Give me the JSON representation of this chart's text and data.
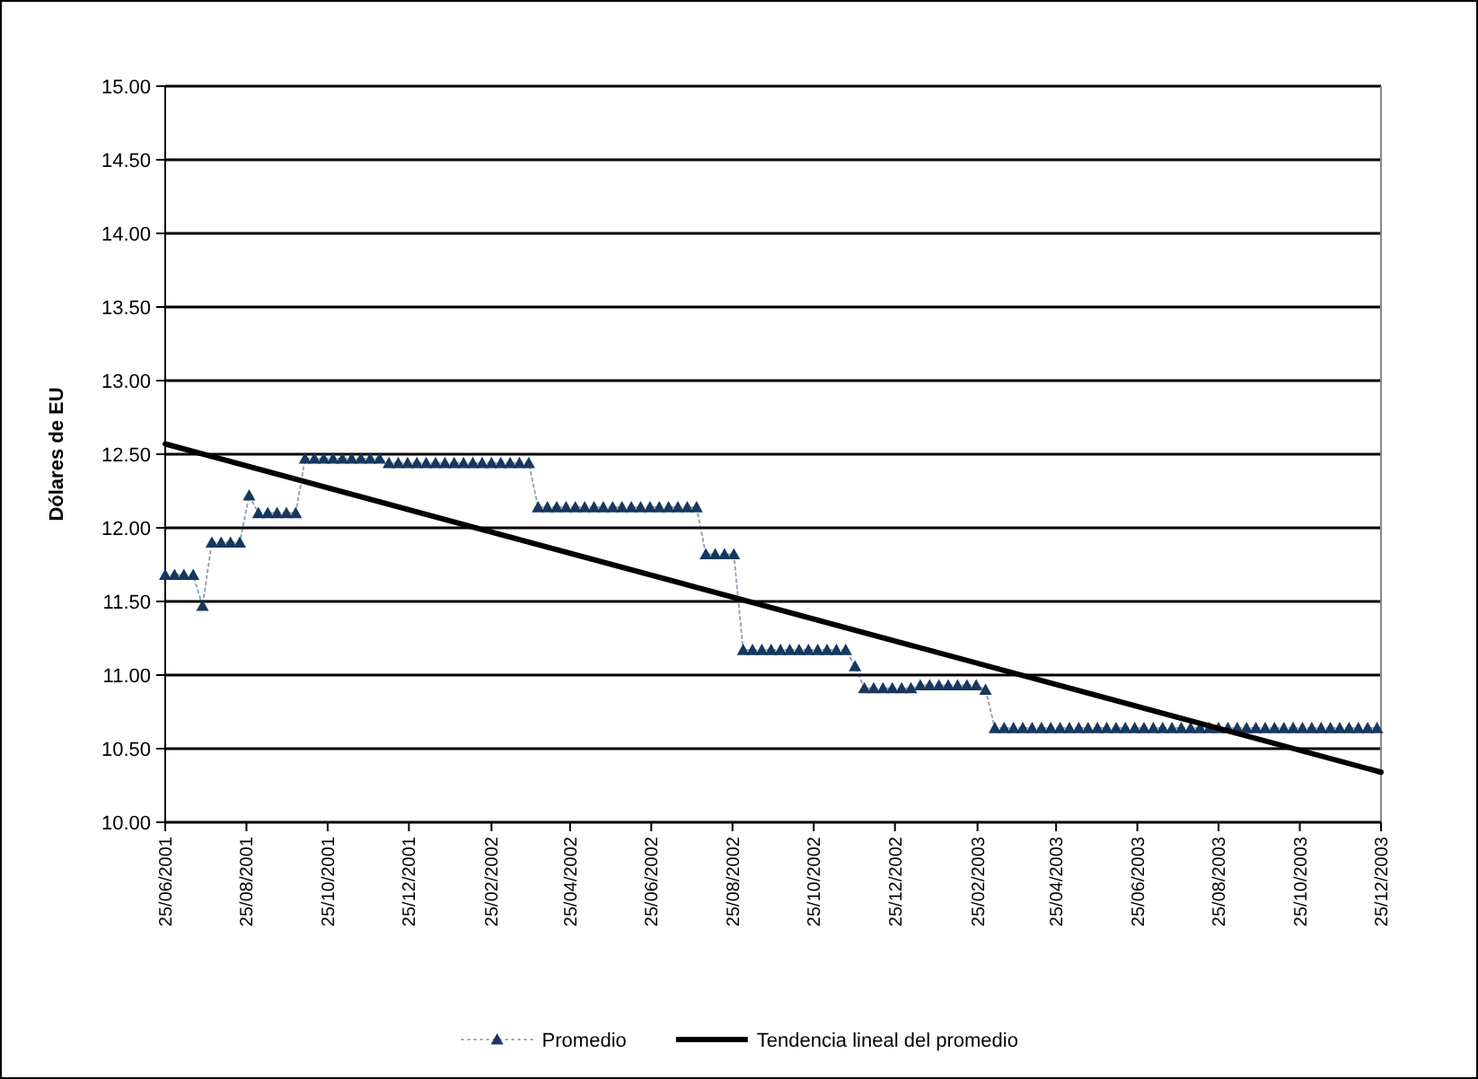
{
  "chart_data": {
    "type": "line",
    "ylabel": "Dólares de EU",
    "ylim": [
      10,
      15
    ],
    "yticks": [
      {
        "value": 10,
        "label": "10.00"
      },
      {
        "value": 10.5,
        "label": "10.50"
      },
      {
        "value": 11,
        "label": "11.00"
      },
      {
        "value": 11.5,
        "label": "11.50"
      },
      {
        "value": 12,
        "label": "12.00"
      },
      {
        "value": 12.5,
        "label": "12.50"
      },
      {
        "value": 13,
        "label": "13.00"
      },
      {
        "value": 13.5,
        "label": "13.50"
      },
      {
        "value": 14,
        "label": "14.00"
      },
      {
        "value": 14.5,
        "label": "14.50"
      },
      {
        "value": 15,
        "label": "15.00"
      }
    ],
    "xlim": [
      "2001-06-25",
      "2003-12-25"
    ],
    "xticks": [
      {
        "value": "2001-06-25",
        "label": "25/06/2001"
      },
      {
        "value": "2001-08-25",
        "label": "25/08/2001"
      },
      {
        "value": "2001-10-25",
        "label": "25/10/2001"
      },
      {
        "value": "2001-12-25",
        "label": "25/12/2001"
      },
      {
        "value": "2002-02-25",
        "label": "25/02/2002"
      },
      {
        "value": "2002-04-25",
        "label": "25/04/2002"
      },
      {
        "value": "2002-06-25",
        "label": "25/06/2002"
      },
      {
        "value": "2002-08-25",
        "label": "25/08/2002"
      },
      {
        "value": "2002-10-25",
        "label": "25/10/2002"
      },
      {
        "value": "2002-12-25",
        "label": "25/12/2002"
      },
      {
        "value": "2003-02-25",
        "label": "25/02/2003"
      },
      {
        "value": "2003-04-25",
        "label": "25/04/2003"
      },
      {
        "value": "2003-06-25",
        "label": "25/06/2003"
      },
      {
        "value": "2003-08-25",
        "label": "25/08/2003"
      },
      {
        "value": "2003-10-25",
        "label": "25/10/2003"
      },
      {
        "value": "2003-12-25",
        "label": "25/12/2003"
      }
    ],
    "grid": "y",
    "legend": "bottom",
    "series": [
      {
        "name": "Promedio",
        "color": "#17375e",
        "marker": "triangle",
        "line_style": "dotted",
        "x": [
          "2001-06-25",
          "2001-07-02",
          "2001-07-09",
          "2001-07-16",
          "2001-07-23",
          "2001-07-30",
          "2001-08-06",
          "2001-08-13",
          "2001-08-20",
          "2001-08-27",
          "2001-09-03",
          "2001-09-10",
          "2001-09-17",
          "2001-09-24",
          "2001-10-01",
          "2001-10-08",
          "2001-10-15",
          "2001-10-22",
          "2001-10-29",
          "2001-11-05",
          "2001-11-12",
          "2001-11-19",
          "2001-11-26",
          "2001-12-03",
          "2001-12-10",
          "2001-12-17",
          "2001-12-24",
          "2001-12-31",
          "2002-01-07",
          "2002-01-14",
          "2002-01-21",
          "2002-01-28",
          "2002-02-04",
          "2002-02-11",
          "2002-02-18",
          "2002-02-25",
          "2002-03-04",
          "2002-03-11",
          "2002-03-18",
          "2002-03-25",
          "2002-04-01",
          "2002-04-08",
          "2002-04-15",
          "2002-04-22",
          "2002-04-29",
          "2002-05-06",
          "2002-05-13",
          "2002-05-20",
          "2002-05-27",
          "2002-06-03",
          "2002-06-10",
          "2002-06-17",
          "2002-06-24",
          "2002-07-01",
          "2002-07-08",
          "2002-07-15",
          "2002-07-22",
          "2002-07-29",
          "2002-08-05",
          "2002-08-12",
          "2002-08-19",
          "2002-08-26",
          "2002-09-02",
          "2002-09-09",
          "2002-09-16",
          "2002-09-23",
          "2002-09-30",
          "2002-10-07",
          "2002-10-14",
          "2002-10-21",
          "2002-10-28",
          "2002-11-04",
          "2002-11-11",
          "2002-11-18",
          "2002-11-25",
          "2002-12-02",
          "2002-12-09",
          "2002-12-16",
          "2002-12-23",
          "2002-12-30",
          "2003-01-06",
          "2003-01-13",
          "2003-01-20",
          "2003-01-27",
          "2003-02-03",
          "2003-02-10",
          "2003-02-17",
          "2003-02-24",
          "2003-03-03",
          "2003-03-10",
          "2003-03-17",
          "2003-03-24",
          "2003-03-31",
          "2003-04-07",
          "2003-04-14",
          "2003-04-21",
          "2003-04-28",
          "2003-05-05",
          "2003-05-12",
          "2003-05-19",
          "2003-05-26",
          "2003-06-02",
          "2003-06-09",
          "2003-06-16",
          "2003-06-23",
          "2003-06-30",
          "2003-07-07",
          "2003-07-14",
          "2003-07-21",
          "2003-07-28",
          "2003-08-04",
          "2003-08-11",
          "2003-08-18",
          "2003-08-25",
          "2003-09-01",
          "2003-09-08",
          "2003-09-15",
          "2003-09-22",
          "2003-09-29",
          "2003-10-06",
          "2003-10-13",
          "2003-10-20",
          "2003-10-27",
          "2003-11-03",
          "2003-11-10",
          "2003-11-17",
          "2003-11-24",
          "2003-12-01",
          "2003-12-08",
          "2003-12-15",
          "2003-12-22"
        ],
        "values": [
          11.68,
          11.68,
          11.68,
          11.68,
          11.47,
          11.9,
          11.9,
          11.9,
          11.9,
          12.22,
          12.1,
          12.1,
          12.1,
          12.1,
          12.1,
          12.47,
          12.47,
          12.47,
          12.47,
          12.47,
          12.47,
          12.47,
          12.47,
          12.47,
          12.44,
          12.44,
          12.44,
          12.44,
          12.44,
          12.44,
          12.44,
          12.44,
          12.44,
          12.44,
          12.44,
          12.44,
          12.44,
          12.44,
          12.44,
          12.44,
          12.14,
          12.14,
          12.14,
          12.14,
          12.14,
          12.14,
          12.14,
          12.14,
          12.14,
          12.14,
          12.14,
          12.14,
          12.14,
          12.14,
          12.14,
          12.14,
          12.14,
          12.14,
          11.82,
          11.82,
          11.82,
          11.82,
          11.17,
          11.17,
          11.17,
          11.17,
          11.17,
          11.17,
          11.17,
          11.17,
          11.17,
          11.17,
          11.17,
          11.17,
          11.06,
          10.91,
          10.91,
          10.91,
          10.91,
          10.91,
          10.91,
          10.93,
          10.93,
          10.93,
          10.93,
          10.93,
          10.93,
          10.93,
          10.9,
          10.64,
          10.64,
          10.64,
          10.64,
          10.64,
          10.64,
          10.64,
          10.64,
          10.64,
          10.64,
          10.64,
          10.64,
          10.64,
          10.64,
          10.64,
          10.64,
          10.64,
          10.64,
          10.64,
          10.64,
          10.64,
          10.64,
          10.64,
          10.64,
          10.64,
          10.64,
          10.64,
          10.64,
          10.64,
          10.64,
          10.64,
          10.64,
          10.64,
          10.64,
          10.64,
          10.64,
          10.64,
          10.64,
          10.64,
          10.64,
          10.64,
          10.64
        ]
      },
      {
        "name": "Tendencia lineal del promedio",
        "type": "line",
        "color": "#000000",
        "marker": "none",
        "line_style": "solid",
        "x": [
          "2001-06-25",
          "2003-12-25"
        ],
        "values": [
          12.57,
          10.34
        ]
      }
    ]
  }
}
